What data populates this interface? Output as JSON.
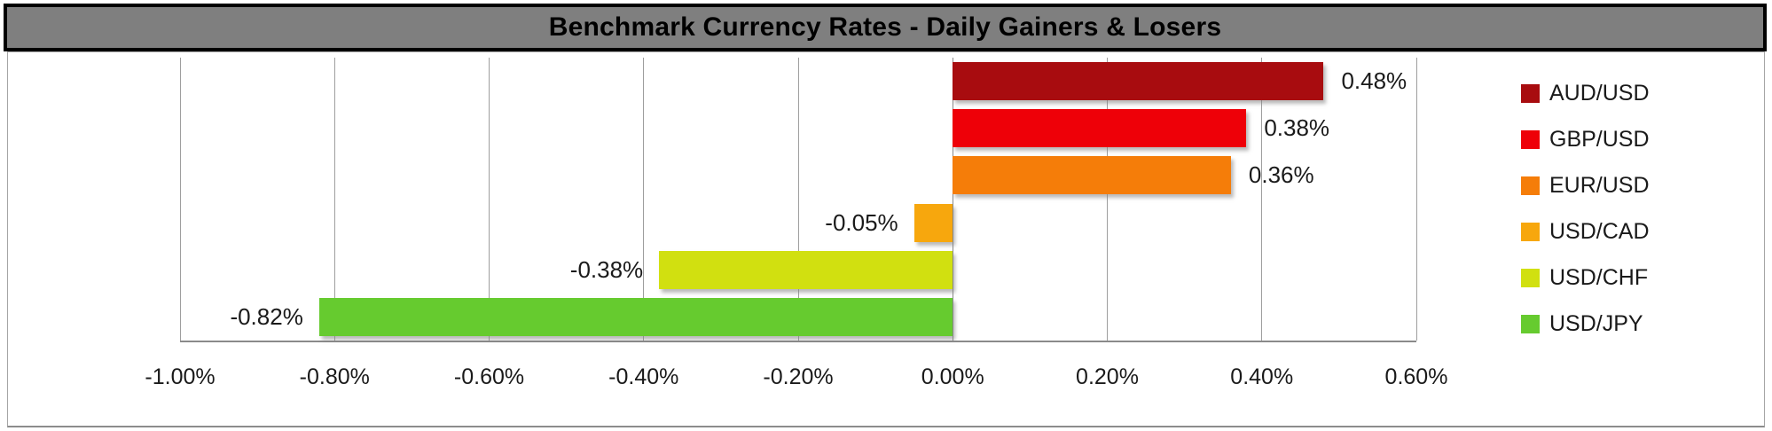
{
  "title": "Benchmark Currency Rates - Daily Gainers & Losers",
  "colors": {
    "title_bg": "#7f7f7f",
    "title_border": "#000000",
    "title_text": "#000000",
    "chart_border": "#a6a6a6",
    "gridline": "#9e9e9e",
    "axis_line": "#8a8a8a",
    "label_text": "#1a1a1a",
    "background": "#ffffff"
  },
  "chart_data": {
    "type": "bar",
    "orientation": "horizontal",
    "title": "Benchmark Currency Rates - Daily Gainers & Losers",
    "categories": [
      "AUD/USD",
      "GBP/USD",
      "EUR/USD",
      "USD/CAD",
      "USD/CHF",
      "USD/JPY"
    ],
    "values": [
      0.48,
      0.38,
      0.36,
      -0.05,
      -0.38,
      -0.82
    ],
    "value_labels": [
      "0.48%",
      "0.38%",
      "0.36%",
      "-0.05%",
      "-0.38%",
      "-0.82%"
    ],
    "bar_colors": [
      "#a80c0f",
      "#ee0008",
      "#f57d09",
      "#f7a70d",
      "#d1e010",
      "#66cb2f"
    ],
    "xlabel": "",
    "ylabel": "",
    "xlim": [
      -1.0,
      0.6
    ],
    "x_tick_step": 0.2,
    "x_tick_labels": [
      "-1.00%",
      "-0.80%",
      "-0.60%",
      "-0.40%",
      "-0.20%",
      "0.00%",
      "0.20%",
      "0.40%",
      "0.60%"
    ],
    "grid": true,
    "legend": {
      "position": "right",
      "entries": [
        {
          "label": "AUD/USD",
          "color": "#a80c0f"
        },
        {
          "label": "GBP/USD",
          "color": "#ee0008"
        },
        {
          "label": "EUR/USD",
          "color": "#f57d09"
        },
        {
          "label": "USD/CAD",
          "color": "#f7a70d"
        },
        {
          "label": "USD/CHF",
          "color": "#d1e010"
        },
        {
          "label": "USD/JPY",
          "color": "#66cb2f"
        }
      ]
    }
  }
}
